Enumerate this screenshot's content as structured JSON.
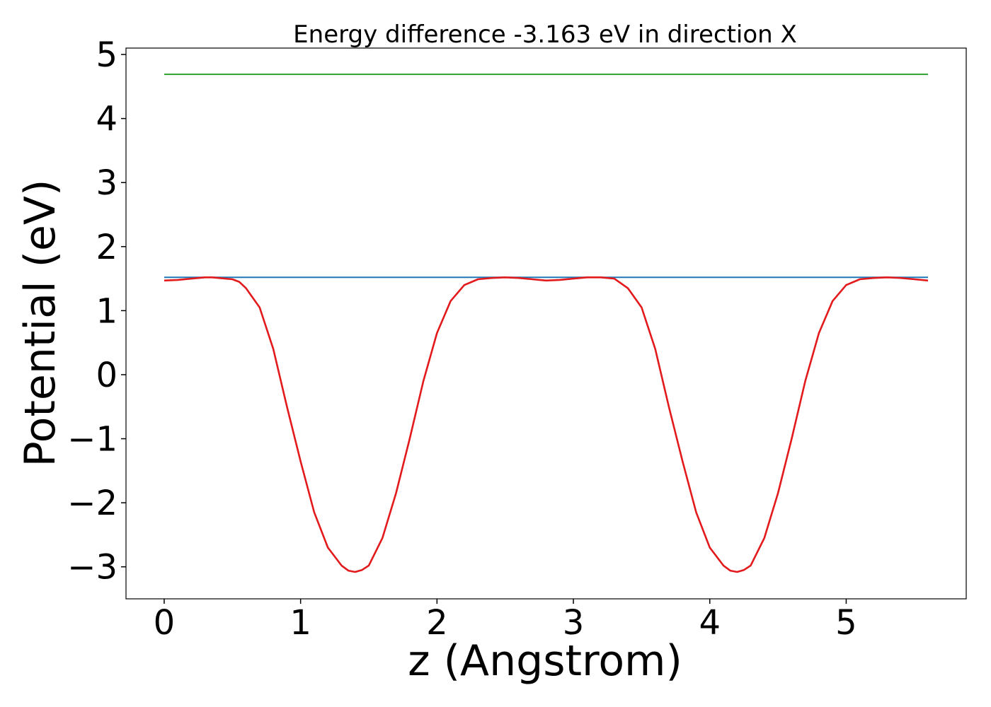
{
  "chart_data": {
    "type": "line",
    "title": "Energy difference -3.163 eV in direction X",
    "xlabel": "z (Angstrom)",
    "ylabel": "Potential (eV)",
    "xlim": [
      -0.28,
      5.88
    ],
    "ylim": [
      -3.5,
      5.1
    ],
    "xticks": [
      0,
      1,
      2,
      3,
      4,
      5
    ],
    "xtick_labels": [
      "0",
      "1",
      "2",
      "3",
      "4",
      "5"
    ],
    "yticks": [
      -3,
      -2,
      -1,
      0,
      1,
      2,
      3,
      4,
      5
    ],
    "ytick_labels": [
      "−3",
      "−2",
      "−1",
      "0",
      "1",
      "2",
      "3",
      "4",
      "5"
    ],
    "grid": false,
    "series": [
      {
        "color": "#2ca02c",
        "x": [
          0,
          5.6
        ],
        "y": [
          4.69,
          4.69
        ]
      },
      {
        "color": "#1f77b4",
        "x": [
          0,
          5.6
        ],
        "y": [
          1.52,
          1.52
        ]
      },
      {
        "color": "#e31a1c",
        "x": [
          0,
          0.1,
          0.2,
          0.3,
          0.35,
          0.4,
          0.5,
          0.55,
          0.6,
          0.7,
          0.8,
          0.9,
          1.0,
          1.1,
          1.2,
          1.3,
          1.35,
          1.4,
          1.45,
          1.5,
          1.6,
          1.7,
          1.8,
          1.9,
          2.0,
          2.1,
          2.2,
          2.3,
          2.4,
          2.5,
          2.6,
          2.7,
          2.8,
          2.9,
          3.0,
          3.1,
          3.2,
          3.3,
          3.4,
          3.5,
          3.6,
          3.7,
          3.8,
          3.9,
          4.0,
          4.1,
          4.15,
          4.2,
          4.25,
          4.3,
          4.4,
          4.5,
          4.6,
          4.7,
          4.8,
          4.9,
          5.0,
          5.1,
          5.2,
          5.3,
          5.4,
          5.5,
          5.6
        ],
        "y": [
          1.47,
          1.48,
          1.5,
          1.52,
          1.52,
          1.51,
          1.49,
          1.45,
          1.35,
          1.05,
          0.4,
          -0.5,
          -1.35,
          -2.15,
          -2.7,
          -2.98,
          -3.06,
          -3.08,
          -3.05,
          -2.98,
          -2.55,
          -1.85,
          -1.0,
          -0.1,
          0.65,
          1.15,
          1.4,
          1.49,
          1.51,
          1.52,
          1.51,
          1.49,
          1.47,
          1.48,
          1.5,
          1.52,
          1.52,
          1.5,
          1.35,
          1.05,
          0.4,
          -0.5,
          -1.35,
          -2.15,
          -2.7,
          -2.98,
          -3.06,
          -3.08,
          -3.05,
          -2.98,
          -2.55,
          -1.85,
          -1.0,
          -0.1,
          0.65,
          1.15,
          1.4,
          1.49,
          1.51,
          1.52,
          1.51,
          1.49,
          1.47
        ]
      }
    ]
  }
}
